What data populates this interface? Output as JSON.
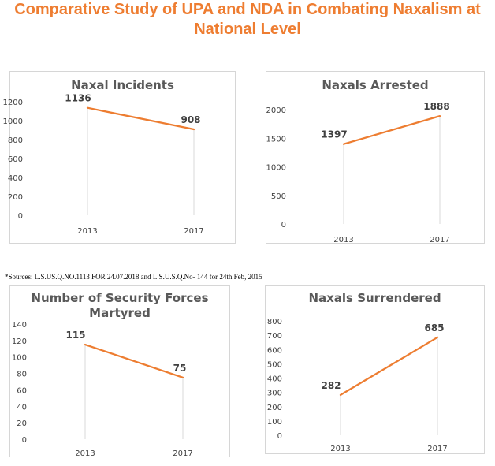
{
  "page": {
    "title_line1": "Comparative Study of UPA and NDA in Combating Naxalism at",
    "title_line2": "National Level",
    "sources": "*Sources: L.S.US.Q.NO.1113 FOR 24.07.2018 and  L.S.U.S.Q.No- 144 for 24th Feb, 2015"
  },
  "colors": {
    "title": "#ee7d31",
    "line": "#ed7d31",
    "axis_text": "#404040",
    "chart_title": "#595959"
  },
  "chart_data": [
    {
      "id": "naxal-incidents",
      "type": "line",
      "title_lines": [
        "Naxal Incidents"
      ],
      "categories": [
        "2013",
        "2017"
      ],
      "series": [
        {
          "values": [
            1136,
            908
          ]
        }
      ],
      "data_labels": [
        "1136",
        "908"
      ],
      "ylim": [
        0,
        1200
      ],
      "yticks": [
        0,
        200,
        400,
        600,
        800,
        1000,
        1200
      ],
      "grid": false
    },
    {
      "id": "naxals-arrested",
      "type": "line",
      "title_lines": [
        "Naxals Arrested"
      ],
      "categories": [
        "2013",
        "2017"
      ],
      "series": [
        {
          "values": [
            1397,
            1888
          ]
        }
      ],
      "data_labels": [
        "1397",
        "1888"
      ],
      "ylim": [
        0,
        2000
      ],
      "yticks": [
        0,
        500,
        1000,
        1500,
        2000
      ],
      "grid": false
    },
    {
      "id": "security-forces-martyred",
      "type": "line",
      "title_lines": [
        "Number of Security Forces",
        "Martyred"
      ],
      "categories": [
        "2013",
        "2017"
      ],
      "series": [
        {
          "values": [
            115,
            75
          ]
        }
      ],
      "data_labels": [
        "115",
        "75"
      ],
      "ylim": [
        0,
        140
      ],
      "yticks": [
        0,
        20,
        40,
        60,
        80,
        100,
        120,
        140
      ],
      "grid": false
    },
    {
      "id": "naxals-surrendered",
      "type": "line",
      "title_lines": [
        "Naxals Surrendered"
      ],
      "categories": [
        "2013",
        "2017"
      ],
      "series": [
        {
          "values": [
            282,
            685
          ]
        }
      ],
      "data_labels": [
        "282",
        "685"
      ],
      "ylim": [
        0,
        800
      ],
      "yticks": [
        0,
        100,
        200,
        300,
        400,
        500,
        600,
        700,
        800
      ],
      "grid": false
    }
  ]
}
